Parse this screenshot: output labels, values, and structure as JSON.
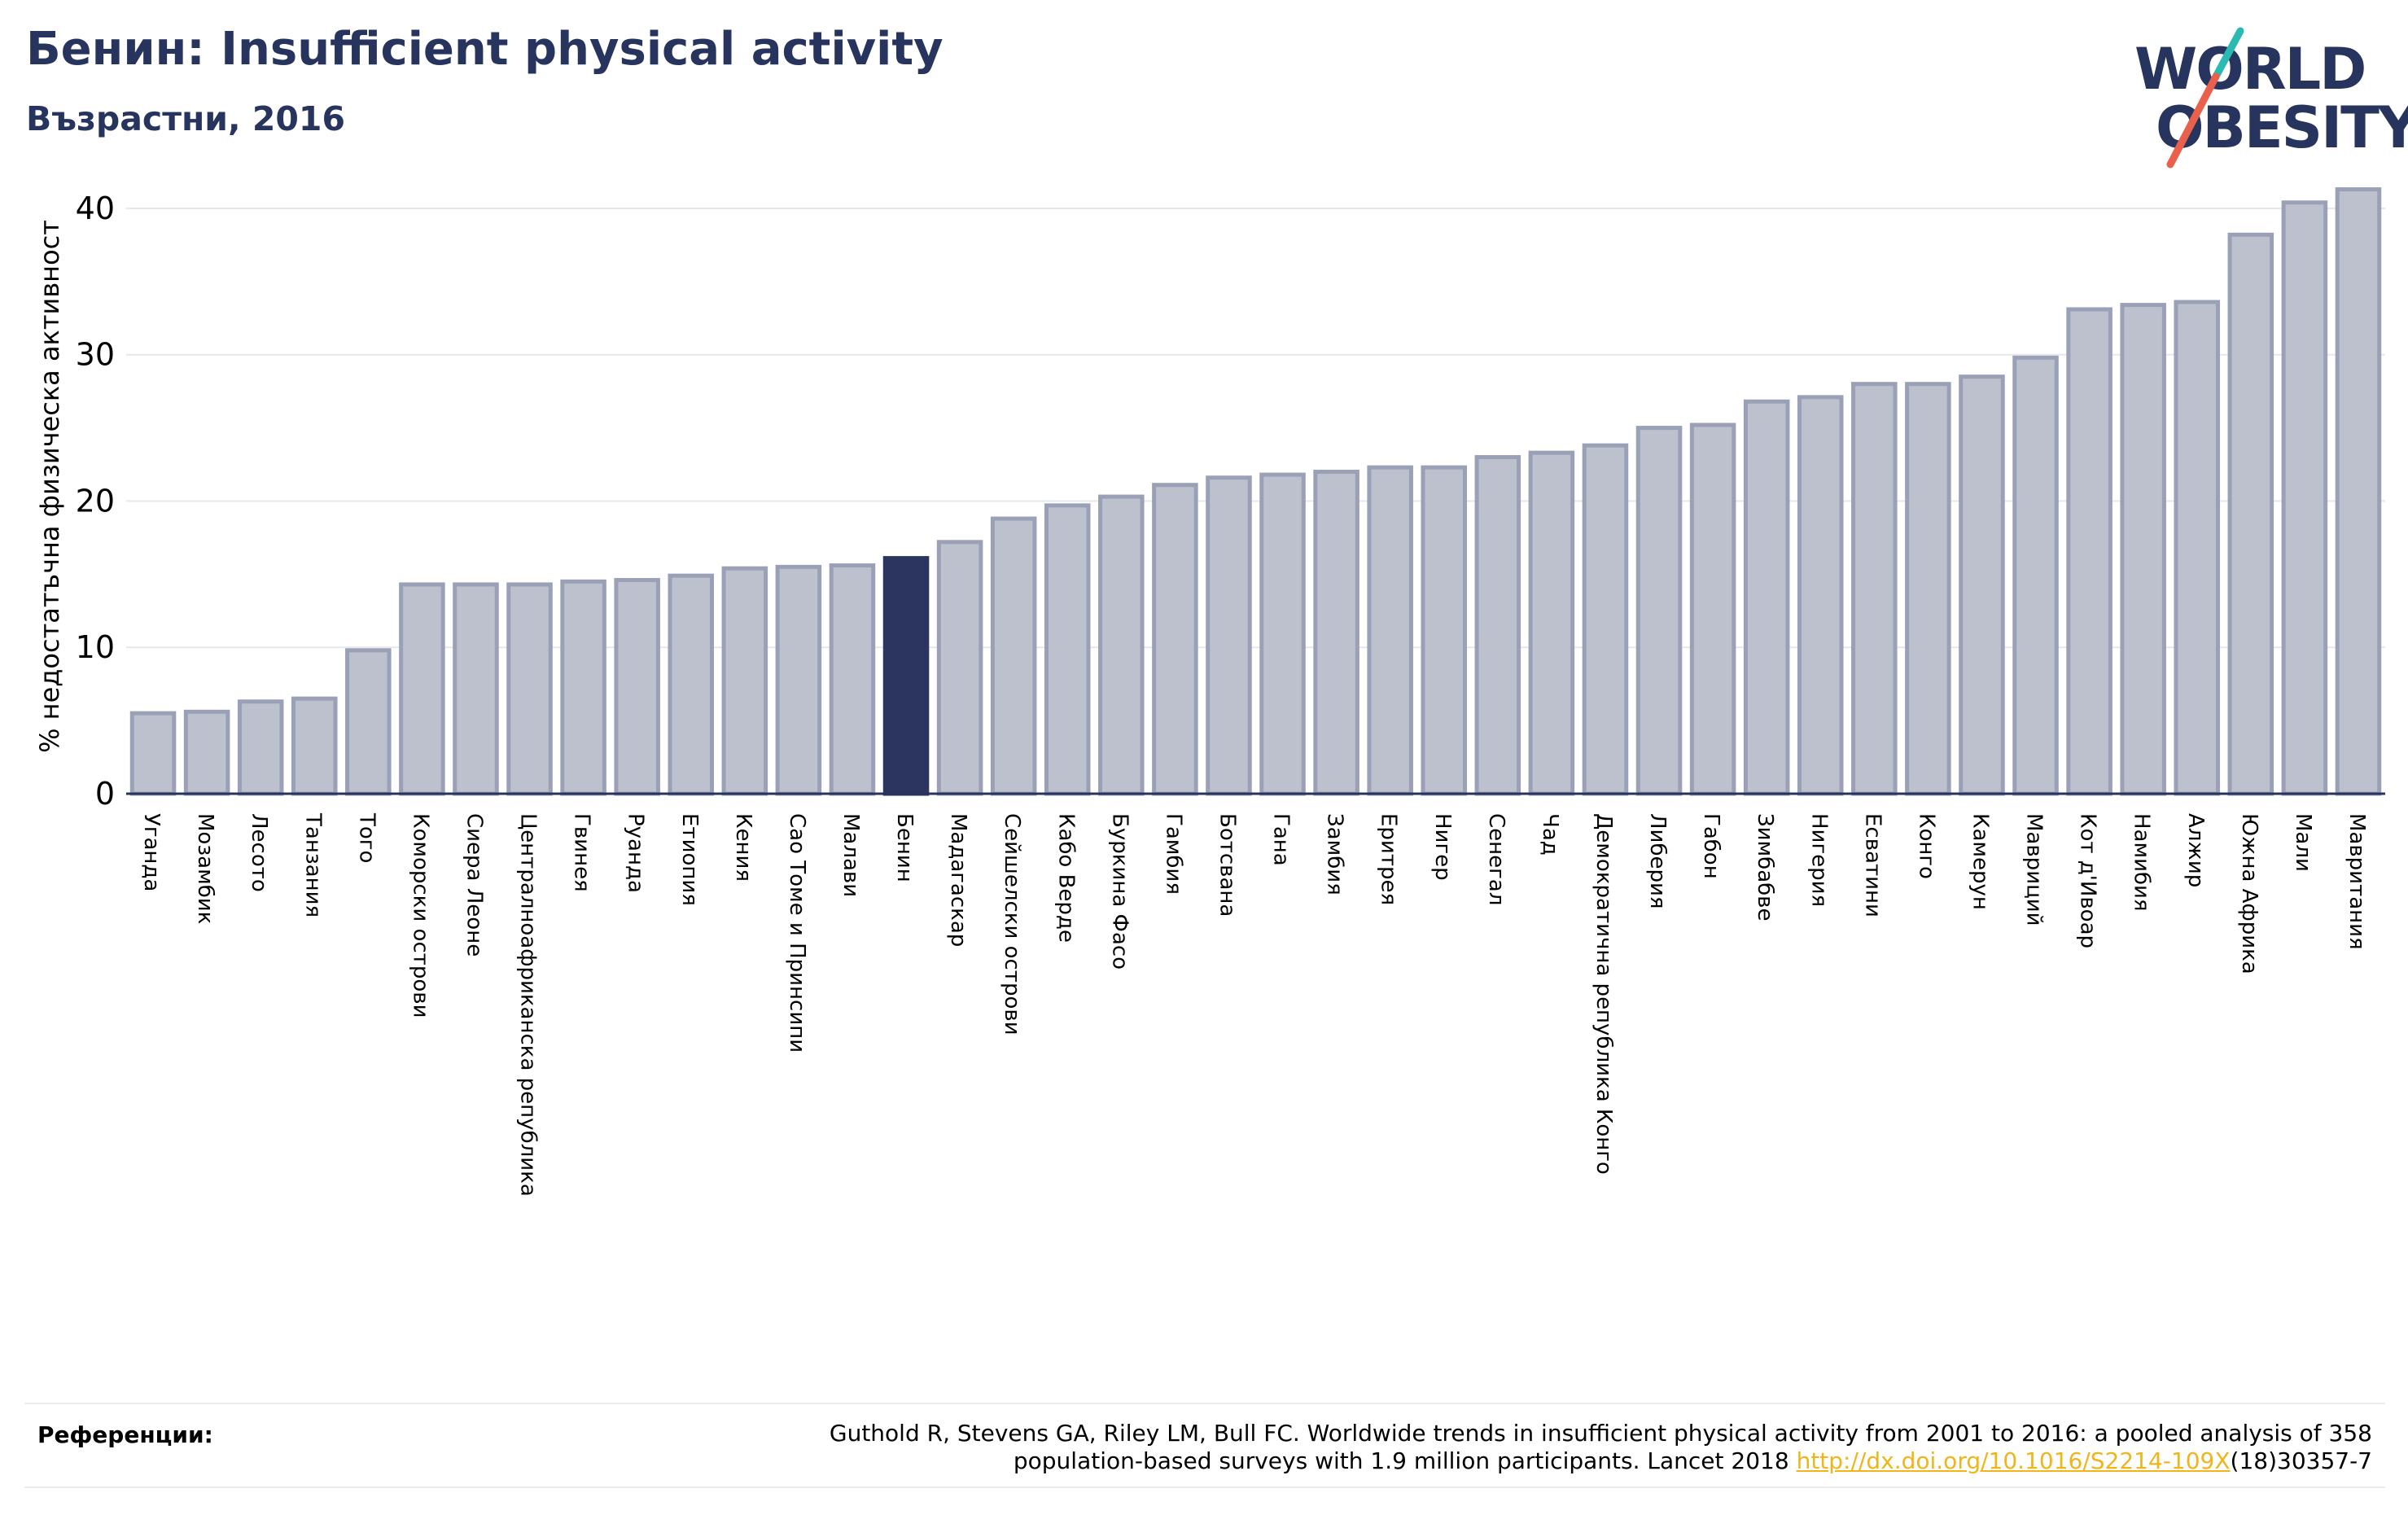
{
  "header": {
    "title": "Бенин: Insufficient physical activity",
    "subtitle": "Възрастни, 2016"
  },
  "logo": {
    "line1": "WORLD",
    "line2": "OBESITY",
    "accent_teal": "#2bb9b4",
    "accent_red": "#e9604c"
  },
  "colors": {
    "bar": "#bdc0cd",
    "bar_stroke": "#9aa0b6",
    "highlight": "#2b3560",
    "text": "#27345e"
  },
  "chart_data": {
    "type": "bar",
    "ylabel": "% недостатъчна физическа активност",
    "ylim": [
      0,
      42
    ],
    "yticks": [
      0,
      10,
      20,
      30,
      40
    ],
    "grid": true,
    "highlight": "Бенин",
    "categories": [
      "Уганда",
      "Мозамбик",
      "Лесото",
      "Танзания",
      "Того",
      "Коморски острови",
      "Сиера Леоне",
      "Централноафриканска република",
      "Гвинея",
      "Руанда",
      "Етиопия",
      "Кения",
      "Сао Томе и Принсипи",
      "Малави",
      "Бенин",
      "Мадагаскар",
      "Сейшелски острови",
      "Кабо Верде",
      "Буркина Фасо",
      "Гамбия",
      "Ботсвана",
      "Гана",
      "Замбия",
      "Еритрея",
      "Нигер",
      "Сенегал",
      "Чад",
      "Демократична република Конго",
      "Либерия",
      "Габон",
      "Зимбабве",
      "Нигерия",
      "Есватини",
      "Конго",
      "Камерун",
      "Мавриций",
      "Кот д'Ивоар",
      "Намибия",
      "Алжир",
      "Южна Африка",
      "Мали",
      "Мавритания"
    ],
    "values": [
      5.5,
      5.6,
      6.3,
      6.5,
      9.8,
      14.3,
      14.3,
      14.3,
      14.5,
      14.6,
      14.9,
      15.4,
      15.5,
      15.6,
      16.1,
      17.2,
      18.8,
      19.7,
      20.3,
      21.1,
      21.6,
      21.8,
      22.0,
      22.3,
      22.3,
      23.0,
      23.3,
      23.8,
      25.0,
      25.2,
      26.8,
      27.1,
      28.0,
      28.0,
      28.5,
      29.8,
      33.1,
      33.4,
      33.6,
      38.2,
      40.4,
      41.3
    ]
  },
  "references": {
    "label": "Референции:",
    "line1": "Guthold R, Stevens GA, Riley LM, Bull FC. Worldwide trends in insufficient physical activity from 2001 to 2016: a pooled analysis of 358",
    "line2_pre": "population-based surveys with 1.9 million participants. Lancet 2018 ",
    "link": "http://dx.doi.org/10.1016/S2214-109X",
    "line2_post": "(18)30357-7"
  }
}
